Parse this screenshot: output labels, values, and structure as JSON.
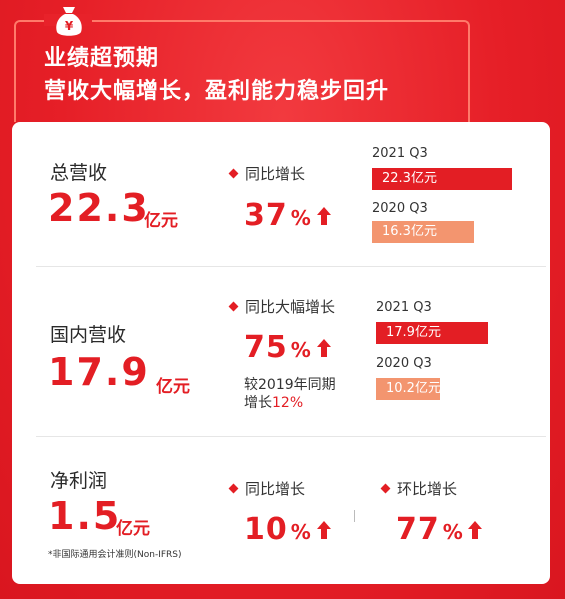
{
  "badge": {
    "symbol": "¥"
  },
  "headline": {
    "line1": "业绩超预期",
    "line2": "营收大幅增长，盈利能力稳步回升"
  },
  "sections": [
    {
      "label": "总营收",
      "value": "22.3",
      "unit": "亿元",
      "growth_label": "同比增长",
      "growth_value": "37",
      "growth_symbol": "%",
      "bars": [
        {
          "period": "2021 Q3",
          "text": "22.3亿元",
          "value": 22.3
        },
        {
          "period": "2020 Q3",
          "text": "16.3亿元",
          "value": 16.3
        }
      ]
    },
    {
      "label": "国内营收",
      "value": "17.9",
      "unit": "亿元",
      "growth_label": "同比大幅增长",
      "growth_value": "75",
      "growth_symbol": "%",
      "note_line1": "较2019年同期",
      "note_line2_prefix": "增长",
      "note_line2_value": "12%",
      "bars": [
        {
          "period": "2021 Q3",
          "text": "17.9亿元",
          "value": 17.9
        },
        {
          "period": "2020 Q3",
          "text": "10.2亿元",
          "value": 10.2
        }
      ]
    },
    {
      "label": "净利润",
      "value": "1.5",
      "unit": "亿元",
      "footnote": "*非国际通用会计准则(Non-IFRS)",
      "growth_label": "同比增长",
      "growth_value": "10",
      "growth_symbol": "%",
      "growth2_label": "环比增长",
      "growth2_value": "77",
      "growth2_symbol": "%"
    }
  ],
  "colors": {
    "accent": "#e31e24",
    "bar_current": "#e31e24",
    "bar_prior": "#f3956f",
    "background": "#e8222a"
  }
}
